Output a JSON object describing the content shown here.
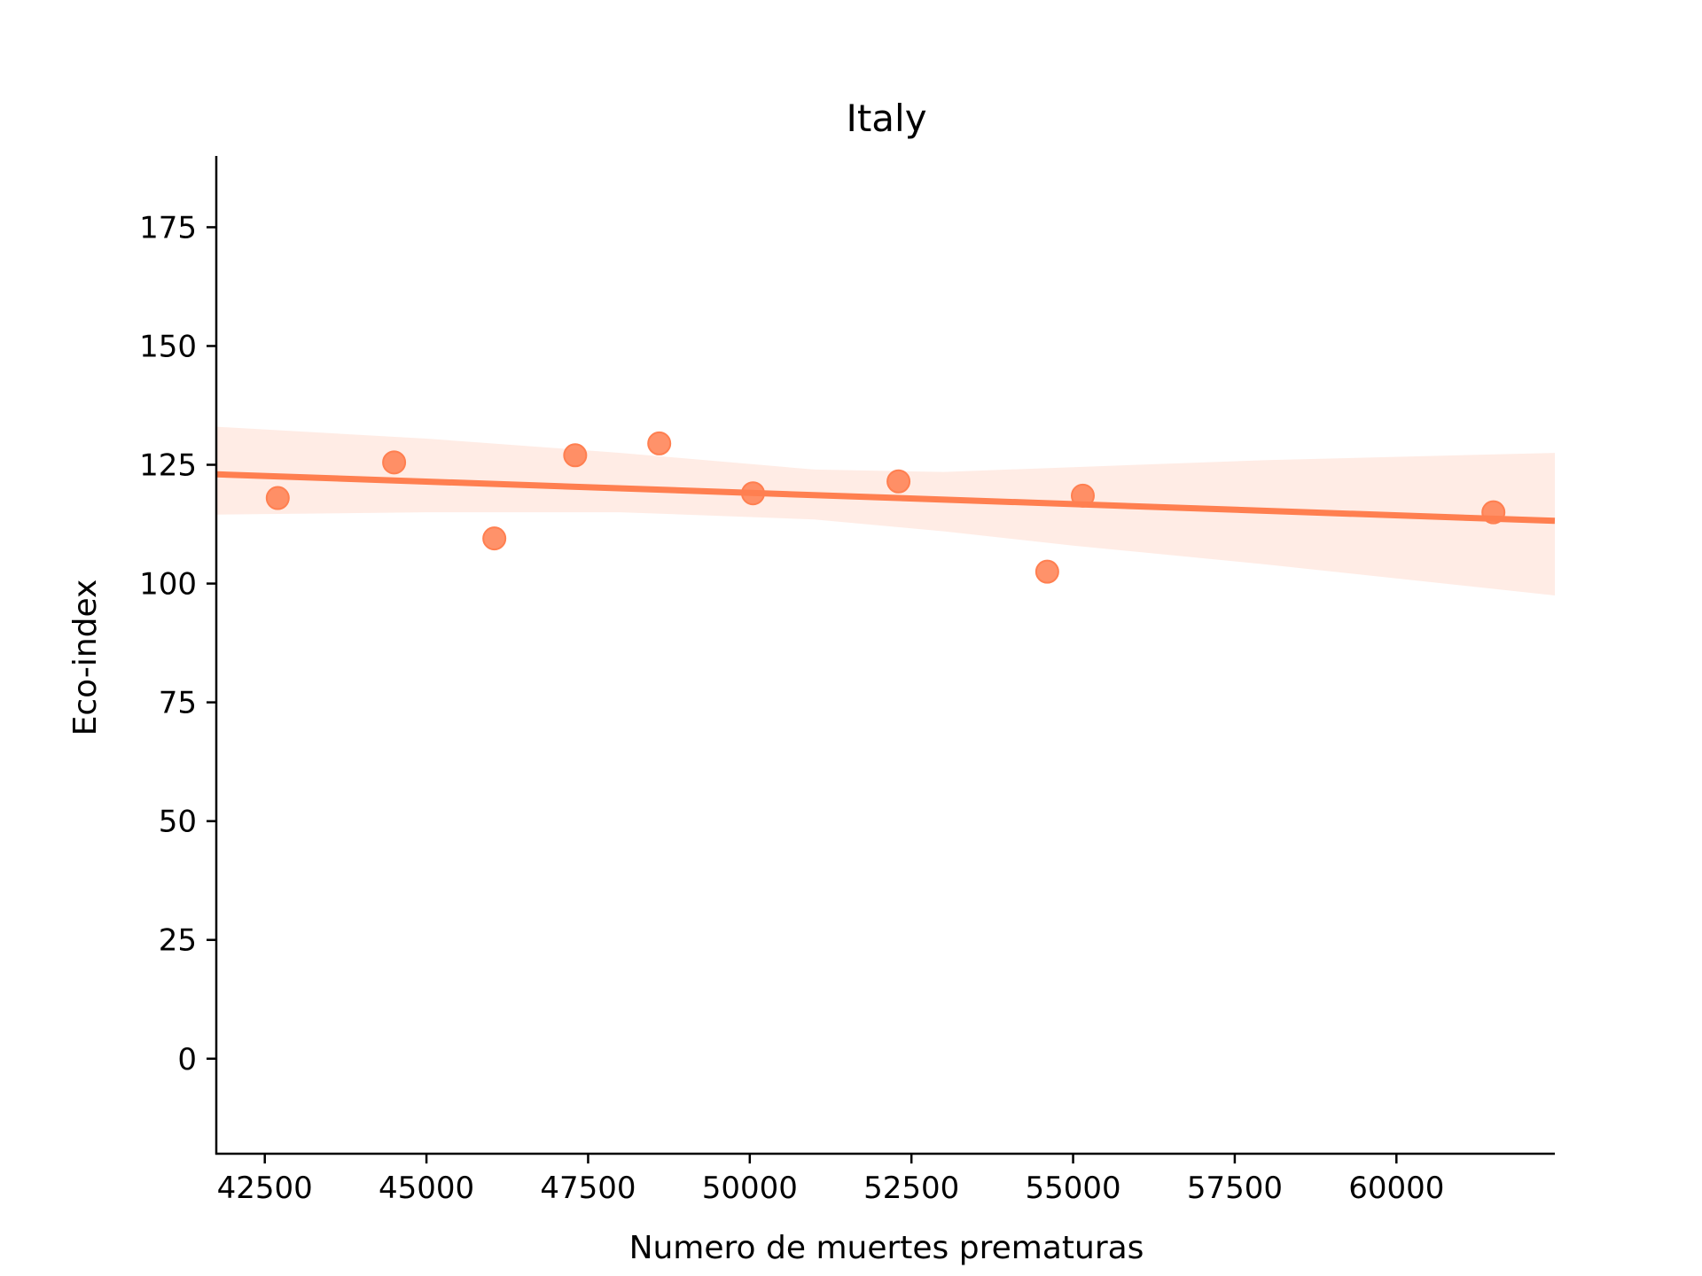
{
  "chart_data": {
    "type": "scatter",
    "title": "Italy",
    "xlabel": "Numero de muertes prematuras",
    "ylabel": "Eco-index",
    "xlim": [
      41750,
      62450
    ],
    "ylim": [
      -20,
      190
    ],
    "xticks": [
      42500,
      45000,
      47500,
      50000,
      52500,
      55000,
      57500,
      60000
    ],
    "yticks": [
      0,
      25,
      50,
      75,
      100,
      125,
      150,
      175
    ],
    "grid": false,
    "color": "#ff7f50",
    "points": [
      {
        "x": 42700,
        "y": 118
      },
      {
        "x": 44500,
        "y": 125.5
      },
      {
        "x": 46050,
        "y": 109.5
      },
      {
        "x": 47300,
        "y": 127
      },
      {
        "x": 48600,
        "y": 129.5
      },
      {
        "x": 50050,
        "y": 119
      },
      {
        "x": 52300,
        "y": 121.5
      },
      {
        "x": 54600,
        "y": 102.5
      },
      {
        "x": 55150,
        "y": 118.5
      },
      {
        "x": 61500,
        "y": 115
      }
    ],
    "regression": {
      "x": [
        41750,
        62450
      ],
      "y": [
        123,
        113.2
      ]
    },
    "confidence_band": {
      "x": [
        41750,
        45000,
        48000,
        51000,
        53000,
        55000,
        58000,
        62450
      ],
      "upper": [
        133,
        130.5,
        127.5,
        124,
        123.5,
        124.5,
        126,
        127.5
      ],
      "lower": [
        114.5,
        115,
        115,
        113.5,
        111,
        108,
        104,
        97.5
      ]
    }
  }
}
